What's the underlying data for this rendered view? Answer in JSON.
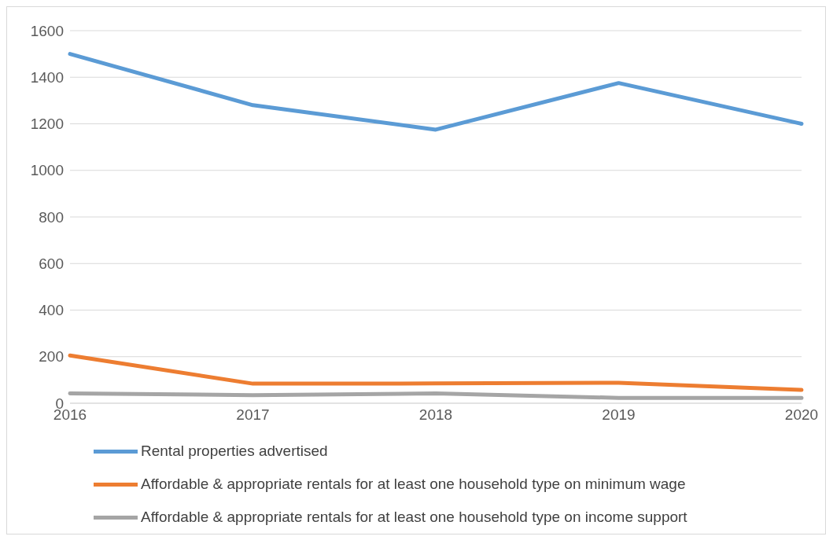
{
  "chart_data": {
    "type": "line",
    "categories": [
      "2016",
      "2017",
      "2018",
      "2019",
      "2020"
    ],
    "series": [
      {
        "name": "Rental properties advertised",
        "color": "#5b9bd5",
        "values": [
          1500,
          1280,
          1175,
          1375,
          1200
        ]
      },
      {
        "name": "Affordable & appropriate rentals for at least one household type on minimum wage",
        "color": "#ed7d31",
        "values": [
          205,
          84,
          85,
          88,
          57
        ]
      },
      {
        "name": "Affordable & appropriate rentals for at least one household type on income support",
        "color": "#a5a5a5",
        "values": [
          42,
          35,
          42,
          23,
          23
        ]
      }
    ],
    "ylim": [
      0,
      1600
    ],
    "yticks": [
      0,
      200,
      400,
      600,
      800,
      1000,
      1200,
      1400,
      1600
    ],
    "grid": "y",
    "legend": "bottom",
    "marker": "none",
    "line_style": "solid"
  }
}
